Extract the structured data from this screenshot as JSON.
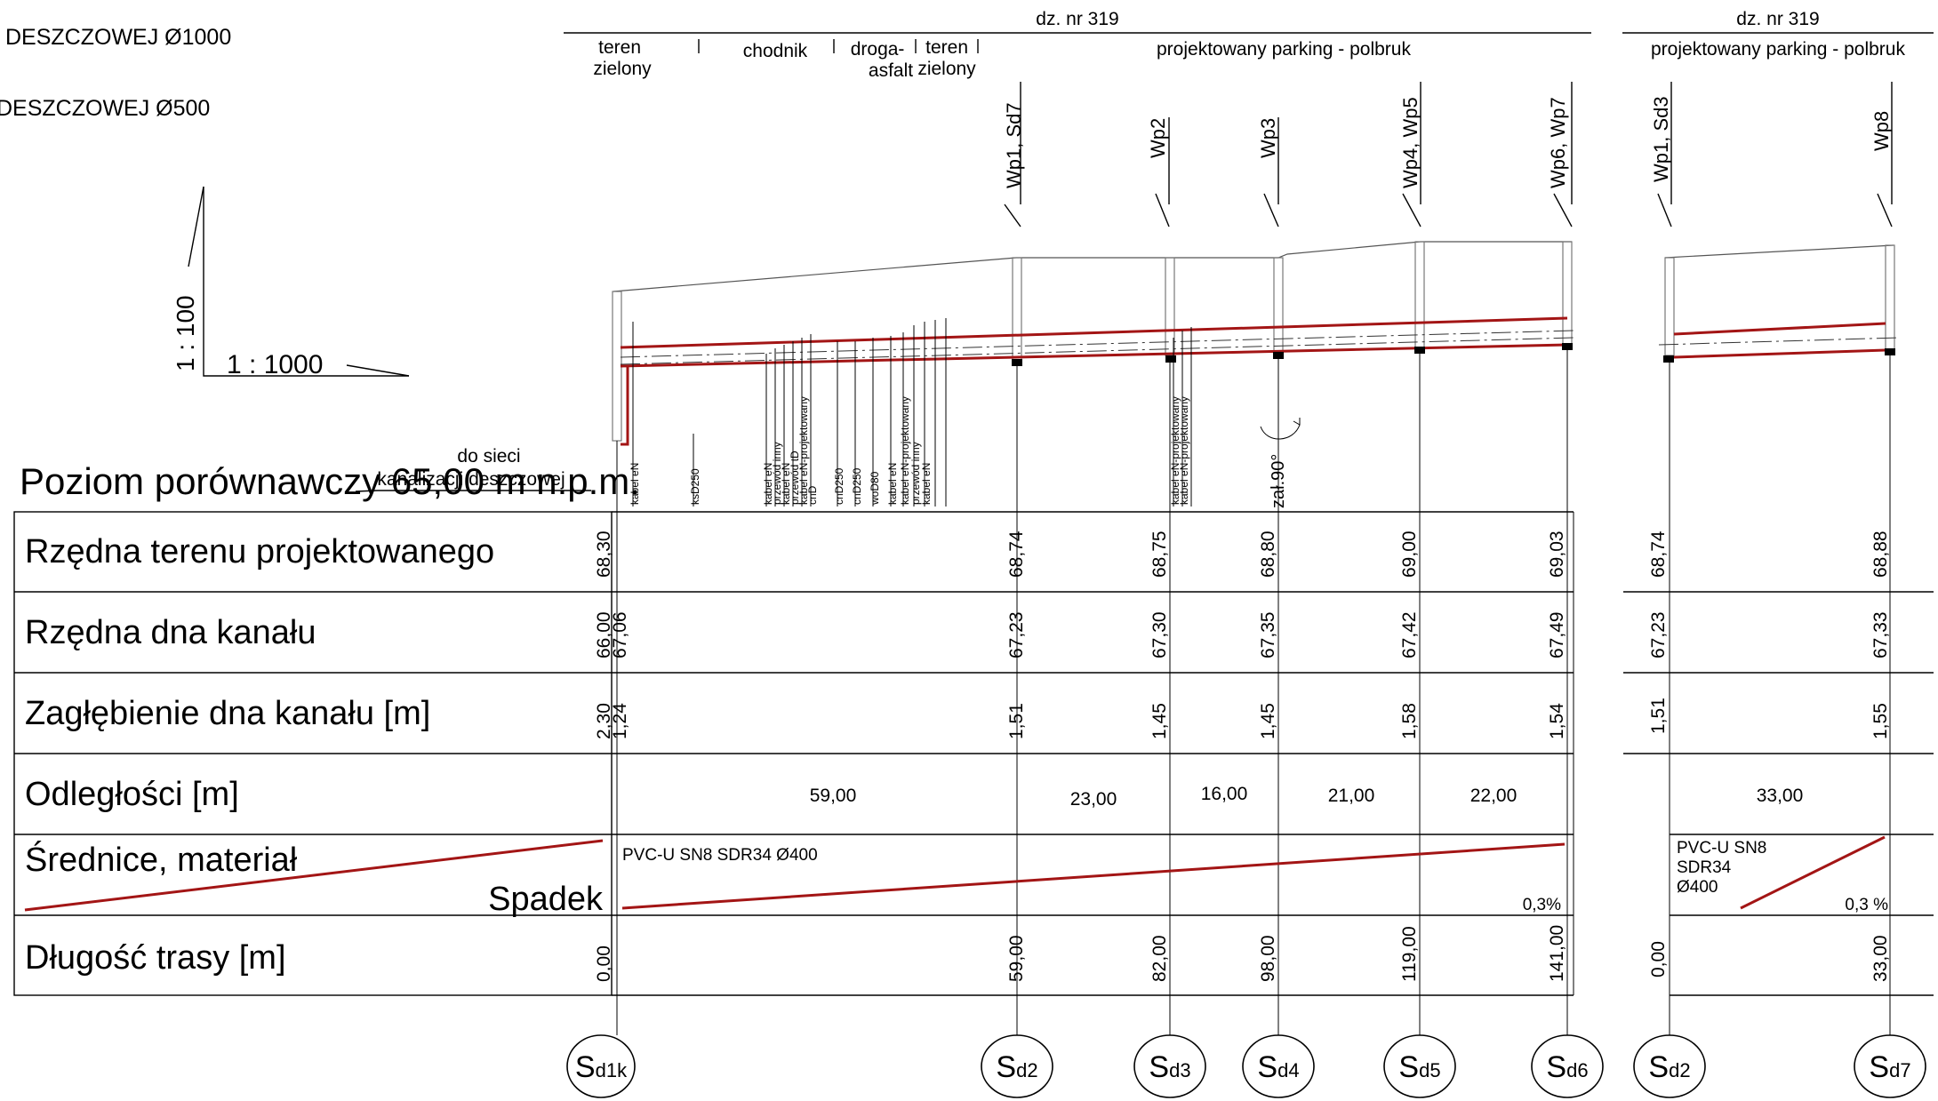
{
  "legend": {
    "line1": "DESZCZOWEJ Ø1000",
    "line2": "DESZCZOWEJ Ø500"
  },
  "scale": {
    "vertical": "1 : 100",
    "horizontal": "1 : 1000"
  },
  "plots": {
    "main": "dz. nr 319",
    "secondary": "dz. nr 319"
  },
  "land_use": {
    "teren_zielony_1": "teren zielony",
    "chodnik": "chodnik",
    "droga_asfalt": "droga- asfalt",
    "teren_zielony_2": "teren zielony",
    "parking_main": "projektowany parking - polbruk",
    "parking_secondary": "projektowany parking - polbruk"
  },
  "connection_note": {
    "line1": "do sieci",
    "line2": "kanalizacji deszczowej"
  },
  "reference_level": "Poziom porównawczy 65,00 m n.p.m.",
  "rows": {
    "terrain": "Rzędna terenu projektowanego",
    "bottom": "Rzędna dna kanału",
    "depth": "Zagłębienie dna kanału [m]",
    "distance": "Odległości [m]",
    "diameter": "Średnice, materiał",
    "slope": "Spadek",
    "length": "Długość trasy [m]"
  },
  "inlet_labels": [
    {
      "id": "lbl-1",
      "text": "Wp1, Sd7"
    },
    {
      "id": "lbl-2",
      "text": "Wp2"
    },
    {
      "id": "lbl-3",
      "text": "Wp3"
    },
    {
      "id": "lbl-4",
      "text": "Wp4, Wp5"
    },
    {
      "id": "lbl-5",
      "text": "Wp6, Wp7"
    },
    {
      "id": "lbl-6",
      "text": "Wp1, Sd3"
    },
    {
      "id": "lbl-7",
      "text": "Wp8"
    }
  ],
  "utility_crossings": [
    "kabel eN",
    "ksD250",
    "kabel eN",
    "przewód inny",
    "kabel eN",
    "przewód tD",
    "kabel eN-projektowany",
    "cnD",
    "cnD250",
    "cnD250",
    "woD80",
    "kabel eN",
    "kabel eN-projektowany",
    "przewód inny",
    "kabel eN",
    "kabel eN-projektowany",
    "kabel eN-projektowany"
  ],
  "angle_note": "zał.90°",
  "main_section": {
    "stations": [
      {
        "terrain": "68,30",
        "bottom": "66,00",
        "bottom2": "67,06",
        "depth": "2,30",
        "depth2": "1,24",
        "length": "0,00",
        "manhole": "S",
        "manhole_sub": "d1k"
      },
      {
        "terrain": "68,74",
        "bottom": "67,23",
        "depth": "1,51",
        "length": "59,00",
        "manhole": "S",
        "manhole_sub": "d2"
      },
      {
        "terrain": "68,75",
        "bottom": "67,30",
        "depth": "1,45",
        "length": "82,00",
        "manhole": "S",
        "manhole_sub": "d3"
      },
      {
        "terrain": "68,80",
        "bottom": "67,35",
        "depth": "1,45",
        "length": "98,00",
        "manhole": "S",
        "manhole_sub": "d4"
      },
      {
        "terrain": "69,00",
        "bottom": "67,42",
        "depth": "1,58",
        "length": "119,00",
        "manhole": "S",
        "manhole_sub": "d5"
      },
      {
        "terrain": "69,03",
        "bottom": "67,49",
        "depth": "1,54",
        "length": "141,00",
        "manhole": "S",
        "manhole_sub": "d6"
      }
    ],
    "distances": [
      "59,00",
      "23,00",
      "16,00",
      "21,00",
      "22,00"
    ],
    "pipe": "PVC-U SN8 SDR34 Ø400",
    "slope": "0,3%"
  },
  "secondary_section": {
    "stations": [
      {
        "terrain": "68,74",
        "bottom": "67,23",
        "depth": "1,51",
        "length": "0,00",
        "manhole": "S",
        "manhole_sub": "d2"
      },
      {
        "terrain": "68,88",
        "bottom": "67,33",
        "depth": "1,55",
        "length": "33,00",
        "manhole": "S",
        "manhole_sub": "d7"
      }
    ],
    "distances": [
      "33,00"
    ],
    "pipe_line1": "PVC-U SN8",
    "pipe_line2": "SDR34",
    "pipe_line3": "Ø400",
    "slope": "0,3 %"
  },
  "colors": {
    "pipe": "#a31515",
    "lines": "#000000"
  }
}
